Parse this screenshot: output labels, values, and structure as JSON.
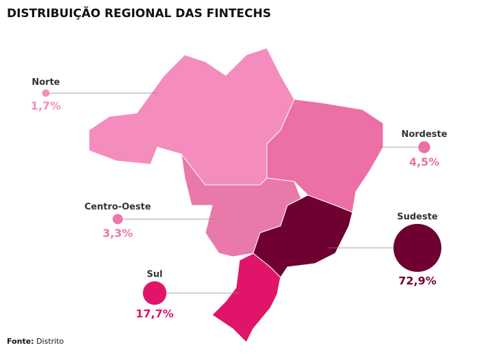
{
  "chart_data": {
    "type": "bubble",
    "title": "DISTRIBUIÇÃO REGIONAL DAS FINTECHS",
    "categories": [
      "Norte",
      "Nordeste",
      "Centro-Oeste",
      "Sudeste",
      "Sul"
    ],
    "values": [
      1.7,
      4.5,
      3.3,
      72.9,
      17.7
    ],
    "value_labels": [
      "1,7%",
      "4,5%",
      "3,3%",
      "72,9%",
      "17,7%"
    ],
    "colors": [
      "#f48cbd",
      "#ec6fa5",
      "#ea79ab",
      "#6e0032",
      "#e0156a"
    ],
    "source": {
      "label": "Fonte:",
      "text": "Distrito"
    }
  }
}
